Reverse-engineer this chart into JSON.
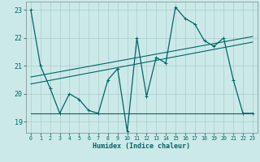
{
  "xlabel": "Humidex (Indice chaleur)",
  "bg_color": "#cce9e9",
  "grid_color": "#aacccc",
  "line_color": "#006666",
  "xlim": [
    -0.5,
    23.5
  ],
  "ylim": [
    18.6,
    23.3
  ],
  "yticks": [
    19,
    20,
    21,
    22,
    23
  ],
  "xticks": [
    0,
    1,
    2,
    3,
    4,
    5,
    6,
    7,
    8,
    9,
    10,
    11,
    12,
    13,
    14,
    15,
    16,
    17,
    18,
    19,
    20,
    21,
    22,
    23
  ],
  "main_x": [
    0,
    1,
    2,
    3,
    4,
    5,
    6,
    7,
    8,
    9,
    10,
    11,
    12,
    13,
    14,
    15,
    16,
    17,
    18,
    19,
    20,
    21,
    22,
    23
  ],
  "main_y": [
    23.0,
    21.0,
    20.2,
    19.3,
    20.0,
    19.8,
    19.4,
    19.3,
    20.5,
    20.9,
    18.65,
    22.0,
    19.9,
    21.3,
    21.1,
    23.1,
    22.7,
    22.5,
    21.9,
    21.7,
    22.0,
    20.5,
    19.3,
    19.3
  ],
  "trend1_x": [
    0,
    23
  ],
  "trend1_y": [
    19.3,
    19.3
  ],
  "trend2_x": [
    0,
    23
  ],
  "trend2_y": [
    20.35,
    21.85
  ],
  "trend3_x": [
    0,
    23
  ],
  "trend3_y": [
    20.6,
    22.05
  ]
}
